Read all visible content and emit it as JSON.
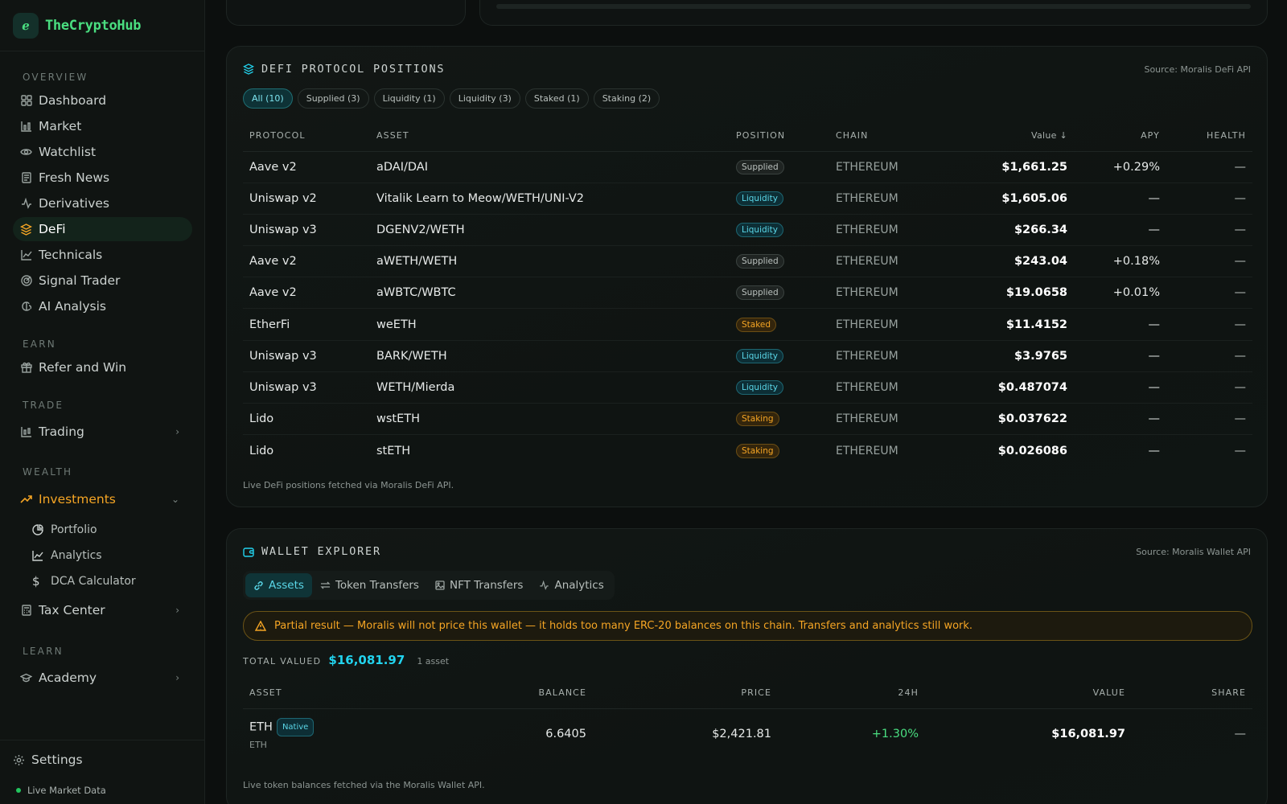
{
  "brand": {
    "logo_glyph": "ℯ",
    "name": "TheCryptoHub"
  },
  "sidebar": {
    "sections": {
      "overview": "OVERVIEW",
      "earn": "EARN",
      "trade": "TRADE",
      "wealth": "WEALTH",
      "learn": "LEARN"
    },
    "overview_items": [
      {
        "label": "Dashboard",
        "icon": "dashboard-icon"
      },
      {
        "label": "Market",
        "icon": "market-icon"
      },
      {
        "label": "Watchlist",
        "icon": "eye-icon"
      },
      {
        "label": "Fresh News",
        "icon": "newspaper-icon"
      },
      {
        "label": "Derivatives",
        "icon": "activity-icon"
      },
      {
        "label": "DeFi",
        "icon": "layers-icon",
        "active": true
      },
      {
        "label": "Technicals",
        "icon": "line-chart-icon"
      },
      {
        "label": "Signal Trader",
        "icon": "target-icon"
      },
      {
        "label": "AI Analysis",
        "icon": "brain-icon"
      }
    ],
    "earn_items": [
      {
        "label": "Refer and Win",
        "icon": "gift-icon"
      }
    ],
    "trade_items": [
      {
        "label": "Trading",
        "icon": "candles-icon"
      }
    ],
    "investments": {
      "label": "Investments",
      "icon": "trending-up-icon"
    },
    "investment_sub": [
      {
        "label": "Portfolio",
        "icon": "pie-chart-icon"
      },
      {
        "label": "Analytics",
        "icon": "line-chart-icon"
      },
      {
        "label": "DCA Calculator",
        "icon": "dollar-icon"
      }
    ],
    "tax": {
      "label": "Tax Center",
      "icon": "calculator-icon"
    },
    "academy": {
      "label": "Academy",
      "icon": "graduation-cap-icon"
    },
    "settings": "Settings",
    "live": "Live Market Data"
  },
  "defi": {
    "title": "DEFI PROTOCOL POSITIONS",
    "source": "Source: Moralis DeFi API",
    "chips": [
      "All (10)",
      "Supplied (3)",
      "Liquidity (1)",
      "Liquidity (3)",
      "Staked (1)",
      "Staking (2)"
    ],
    "columns": {
      "protocol": "PROTOCOL",
      "asset": "ASSET",
      "position": "POSITION",
      "chain": "CHAIN",
      "value": "Value ↓",
      "apy": "APY",
      "health": "HEALTH"
    },
    "rows": [
      {
        "protocol": "Aave v2",
        "asset": "aDAI/DAI",
        "position": "Supplied",
        "kind": "supplied",
        "chain": "ETHEREUM",
        "value": "$1,661.25",
        "apy": "+0.29%",
        "health": "—"
      },
      {
        "protocol": "Uniswap v2",
        "asset": "Vitalik Learn to Meow/WETH/UNI-V2",
        "position": "Liquidity",
        "kind": "liquidity",
        "chain": "ETHEREUM",
        "value": "$1,605.06",
        "apy": "—",
        "health": "—"
      },
      {
        "protocol": "Uniswap v3",
        "asset": "DGENV2/WETH",
        "position": "Liquidity",
        "kind": "liquidity",
        "chain": "ETHEREUM",
        "value": "$266.34",
        "apy": "—",
        "health": "—"
      },
      {
        "protocol": "Aave v2",
        "asset": "aWETH/WETH",
        "position": "Supplied",
        "kind": "supplied",
        "chain": "ETHEREUM",
        "value": "$243.04",
        "apy": "+0.18%",
        "health": "—"
      },
      {
        "protocol": "Aave v2",
        "asset": "aWBTC/WBTC",
        "position": "Supplied",
        "kind": "supplied",
        "chain": "ETHEREUM",
        "value": "$19.0658",
        "apy": "+0.01%",
        "health": "—"
      },
      {
        "protocol": "EtherFi",
        "asset": "weETH",
        "position": "Staked",
        "kind": "staked",
        "chain": "ETHEREUM",
        "value": "$11.4152",
        "apy": "—",
        "health": "—"
      },
      {
        "protocol": "Uniswap v3",
        "asset": "BARK/WETH",
        "position": "Liquidity",
        "kind": "liquidity",
        "chain": "ETHEREUM",
        "value": "$3.9765",
        "apy": "—",
        "health": "—"
      },
      {
        "protocol": "Uniswap v3",
        "asset": "WETH/Mierda",
        "position": "Liquidity",
        "kind": "liquidity",
        "chain": "ETHEREUM",
        "value": "$0.487074",
        "apy": "—",
        "health": "—"
      },
      {
        "protocol": "Lido",
        "asset": "wstETH",
        "position": "Staking",
        "kind": "staked",
        "chain": "ETHEREUM",
        "value": "$0.037622",
        "apy": "—",
        "health": "—"
      },
      {
        "protocol": "Lido",
        "asset": "stETH",
        "position": "Staking",
        "kind": "staked",
        "chain": "ETHEREUM",
        "value": "$0.026086",
        "apy": "—",
        "health": "—"
      }
    ],
    "footnote": "Live DeFi positions fetched via Moralis DeFi API."
  },
  "wallet": {
    "title": "WALLET EXPLORER",
    "source": "Source: Moralis Wallet API",
    "tabs": [
      {
        "label": "Assets",
        "icon": "link-icon"
      },
      {
        "label": "Token Transfers",
        "icon": "transfer-icon"
      },
      {
        "label": "NFT Transfers",
        "icon": "image-icon"
      },
      {
        "label": "Analytics",
        "icon": "activity-icon"
      }
    ],
    "warning": "Partial result — Moralis will not price this wallet — it holds too many ERC-20 balances on this chain. Transfers and analytics still work.",
    "total_label": "TOTAL VALUED",
    "total_value": "$16,081.97",
    "asset_count": "1 asset",
    "columns": {
      "asset": "ASSET",
      "balance": "BALANCE",
      "price": "PRICE",
      "change": "24H",
      "value": "VALUE",
      "share": "SHARE"
    },
    "rows": [
      {
        "asset": "ETH",
        "badge": "Native",
        "symbol": "ETH",
        "balance": "6.6405",
        "price": "$2,421.81",
        "change": "+1.30%",
        "value": "$16,081.97",
        "share": "—"
      }
    ],
    "footnote": "Live token balances fetched via the Moralis Wallet API."
  },
  "colors": {
    "accent_cyan": "#22d3ee",
    "accent_green": "#4ade80",
    "accent_orange": "#f5a524",
    "background": "#0c0f0e"
  }
}
